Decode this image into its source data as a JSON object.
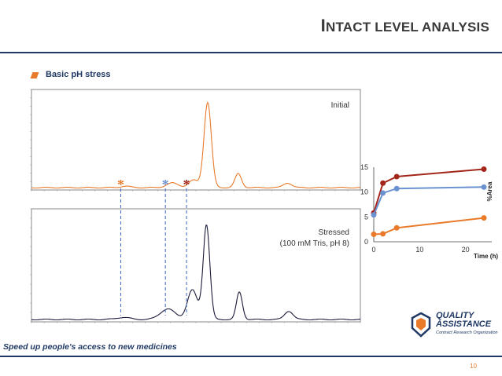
{
  "header": {
    "title_first": "I",
    "title_rest": "NTACT LEVEL ANALYSIS"
  },
  "subtitle": "Basic pH stress",
  "tagline": "Speed up people's access to new medicines",
  "page_number": "10",
  "logo": {
    "line1": "QUALITY",
    "line2": "ASSISTANCE",
    "line3": "Contract Research Organization"
  },
  "colors": {
    "navy": "#1f3864",
    "orange": "#e87a2a",
    "dark_red": "#a3261b",
    "blue": "#6b92d0",
    "dashed_blue": "#4a72c4"
  },
  "chart_data": [
    {
      "type": "line",
      "panel": "chromatogram-initial",
      "label": "Initial",
      "color": "#e87a2a",
      "peaks": [
        {
          "x": 4.5,
          "height": 0.015,
          "width": 0.3
        },
        {
          "x": 6.5,
          "height": 0.05,
          "width": 0.35
        },
        {
          "x": 7.4,
          "height": 0.08,
          "width": 0.3
        },
        {
          "x": 8.0,
          "height": 0.92,
          "width": 0.22
        },
        {
          "x": 9.3,
          "height": 0.15,
          "width": 0.2
        },
        {
          "x": 11.4,
          "height": 0.05,
          "width": 0.25
        }
      ],
      "x_range": [
        0.5,
        14.5
      ],
      "markers": [
        {
          "symbol": "*",
          "x": 4.3,
          "color": "#e87a2a"
        },
        {
          "symbol": "*",
          "x": 6.2,
          "color": "#6b92d0"
        },
        {
          "symbol": "*",
          "x": 7.1,
          "color": "#a3261b"
        }
      ]
    },
    {
      "type": "line",
      "panel": "chromatogram-stressed",
      "label_line1": "Stressed",
      "label_line2": "(100 mM Tris, pH 8)",
      "color": "#1a1a3a",
      "peaks": [
        {
          "x": 4.4,
          "height": 0.02,
          "width": 0.4
        },
        {
          "x": 6.3,
          "height": 0.1,
          "width": 0.45
        },
        {
          "x": 7.35,
          "height": 0.28,
          "width": 0.3
        },
        {
          "x": 7.95,
          "height": 0.9,
          "width": 0.2
        },
        {
          "x": 9.35,
          "height": 0.26,
          "width": 0.18
        },
        {
          "x": 11.45,
          "height": 0.08,
          "width": 0.25
        }
      ],
      "x_range": [
        0.5,
        14.5
      ]
    },
    {
      "type": "line",
      "panel": "area-vs-time",
      "xlabel": "Time (h)",
      "ylabel": "%Area",
      "xlim": [
        0,
        24
      ],
      "ylim": [
        0,
        15
      ],
      "xticks": [
        0,
        10,
        20
      ],
      "yticks": [
        0,
        5,
        10,
        15
      ],
      "series": [
        {
          "color": "#a3261b",
          "x": [
            0,
            2,
            5,
            24
          ],
          "y": [
            5.8,
            11.8,
            13.1,
            14.6
          ]
        },
        {
          "color": "#6b92d0",
          "x": [
            0,
            2,
            5,
            24
          ],
          "y": [
            5.4,
            9.8,
            10.7,
            11.0
          ]
        },
        {
          "color": "#e87a2a",
          "x": [
            0,
            2,
            5,
            24
          ],
          "y": [
            1.5,
            1.6,
            2.8,
            4.8
          ]
        }
      ]
    }
  ]
}
